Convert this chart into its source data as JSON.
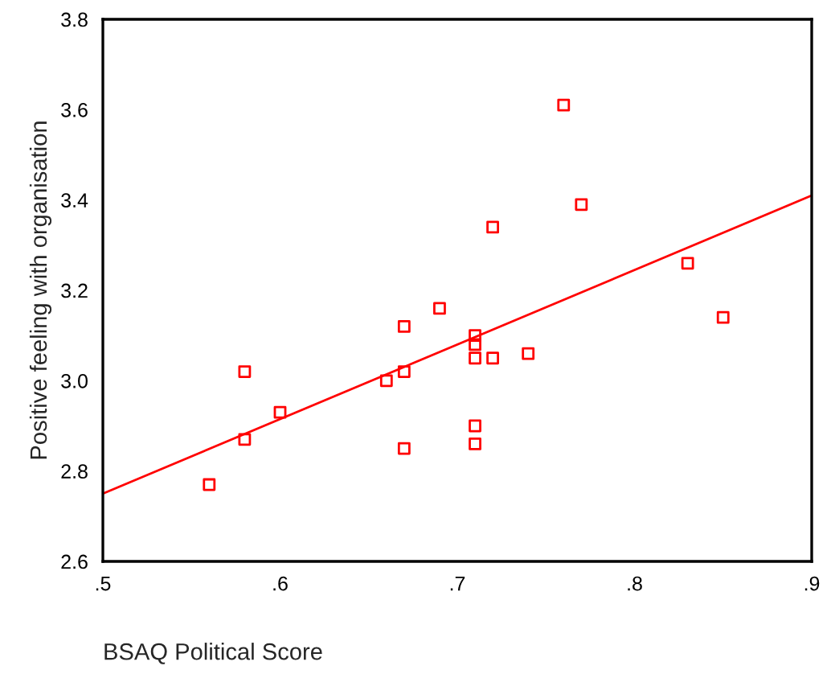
{
  "chart_data": {
    "type": "scatter",
    "xlabel": "BSAQ Political Score",
    "ylabel": "Positive feeling with organisation",
    "xlim": [
      0.5,
      0.9
    ],
    "xticks": [
      {
        "value": 0.5,
        "label": ".5"
      },
      {
        "value": 0.6,
        "label": ".6"
      },
      {
        "value": 0.7,
        "label": ".7"
      },
      {
        "value": 0.8,
        "label": ".8"
      },
      {
        "value": 0.9,
        "label": ".9"
      }
    ],
    "ylim": [
      2.6,
      3.8
    ],
    "yticks": [
      {
        "value": 2.6,
        "label": "2.6"
      },
      {
        "value": 2.8,
        "label": "2.8"
      },
      {
        "value": 3.0,
        "label": "3.0"
      },
      {
        "value": 3.2,
        "label": "3.2"
      },
      {
        "value": 3.4,
        "label": "3.4"
      },
      {
        "value": 3.6,
        "label": "3.6"
      },
      {
        "value": 3.8,
        "label": "3.8"
      }
    ],
    "grid": false,
    "legend": false,
    "series": [
      {
        "color": "#ff0000",
        "marker": "square",
        "x": [
          0.56,
          0.58,
          0.58,
          0.6,
          0.66,
          0.67,
          0.67,
          0.67,
          0.69,
          0.71,
          0.71,
          0.71,
          0.71,
          0.71,
          0.72,
          0.72,
          0.74,
          0.76,
          0.77,
          0.83,
          0.85
        ],
        "values": [
          2.77,
          3.02,
          2.87,
          2.93,
          3.0,
          3.12,
          3.02,
          2.85,
          3.16,
          3.1,
          3.08,
          3.05,
          2.9,
          2.86,
          3.34,
          3.05,
          3.06,
          3.61,
          3.39,
          3.26,
          3.14
        ]
      },
      {
        "type": "line",
        "color": "#ff0000",
        "marker": "none",
        "line_style": "solid",
        "x": [
          0.5,
          0.9
        ],
        "values": [
          2.75,
          3.41
        ]
      }
    ]
  }
}
